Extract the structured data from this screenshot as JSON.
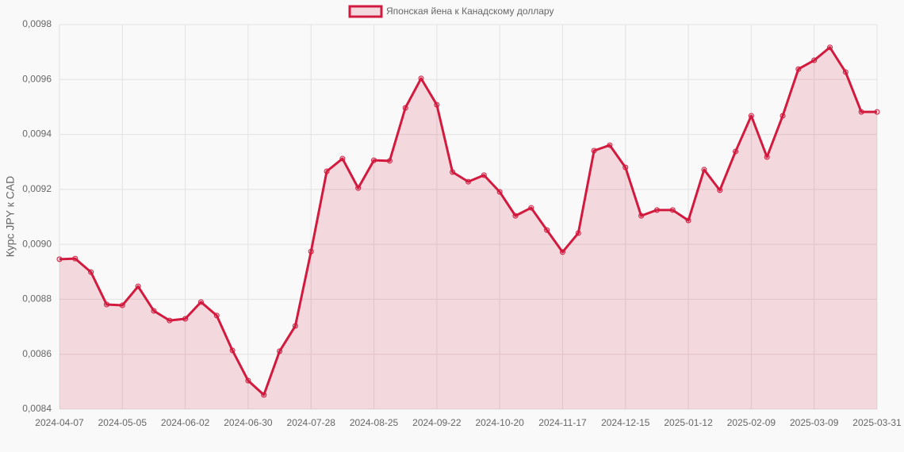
{
  "chart_data": {
    "type": "line",
    "y_label": "Курс JPY к CAD",
    "categories": [
      "2024-04-07",
      null,
      null,
      null,
      "2024-05-05",
      null,
      null,
      null,
      "2024-06-02",
      null,
      null,
      null,
      "2024-06-30",
      null,
      null,
      null,
      "2024-07-28",
      null,
      null,
      null,
      "2024-08-25",
      null,
      null,
      null,
      "2024-09-22",
      null,
      null,
      null,
      "2024-10-20",
      null,
      null,
      null,
      "2024-11-17",
      null,
      null,
      null,
      "2024-12-15",
      null,
      null,
      null,
      "2025-01-12",
      null,
      null,
      null,
      "2025-02-09",
      null,
      null,
      null,
      "2025-03-09",
      null,
      null,
      null,
      "2025-03-31"
    ],
    "series": [
      {
        "name": "Японская йена к Канадскому доллару",
        "color": "#d21a3f",
        "fill": "rgba(210,26,63,0.15)",
        "values": [
          0.008946,
          0.008948,
          0.008899,
          0.008781,
          0.008778,
          0.008847,
          0.008758,
          0.008723,
          0.008729,
          0.00879,
          0.008741,
          0.008614,
          0.008504,
          0.008452,
          0.008611,
          0.008703,
          0.008974,
          0.009266,
          0.009312,
          0.009205,
          0.009306,
          0.009304,
          0.009497,
          0.009604,
          0.009508,
          0.009263,
          0.009228,
          0.009252,
          0.009191,
          0.009104,
          0.009133,
          0.009052,
          0.008972,
          0.009041,
          0.009341,
          0.009361,
          0.00928,
          0.009104,
          0.009125,
          0.009125,
          0.009087,
          0.009272,
          0.009197,
          0.009338,
          0.009468,
          0.009318,
          0.009468,
          0.009638,
          0.00967,
          0.009717,
          0.009627,
          0.009482,
          0.009482
        ]
      }
    ],
    "ylim": [
      0.0084,
      0.0098
    ],
    "yticks": [
      {
        "value": 0.0084,
        "label": "0,0084"
      },
      {
        "value": 0.0086,
        "label": "0,0086"
      },
      {
        "value": 0.0088,
        "label": "0,0088"
      },
      {
        "value": 0.009,
        "label": "0,0090"
      },
      {
        "value": 0.0092,
        "label": "0,0092"
      },
      {
        "value": 0.0094,
        "label": "0,0094"
      },
      {
        "value": 0.0096,
        "label": "0,0096"
      },
      {
        "value": 0.0098,
        "label": "0,0098"
      }
    ],
    "grid": true,
    "legend": "top"
  }
}
